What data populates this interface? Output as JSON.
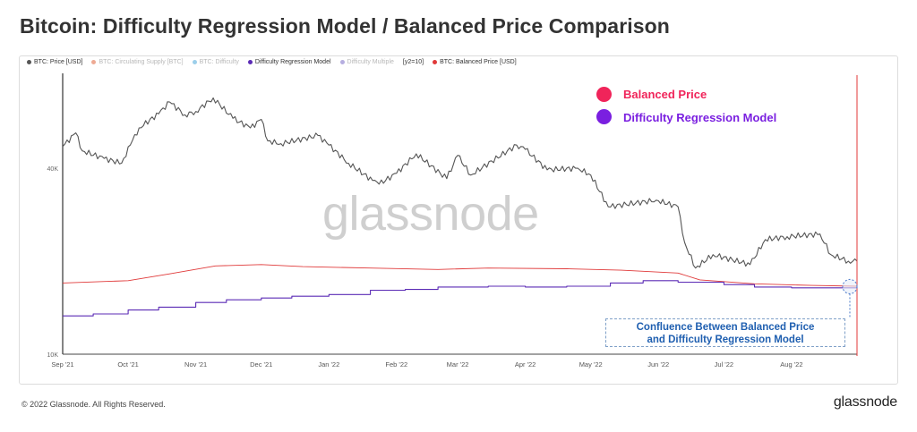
{
  "title": "Bitcoin: Difficulty Regression Model / Balanced Price Comparison",
  "legend": [
    {
      "label": "BTC: Price [USD]",
      "color": "#555555",
      "active": true
    },
    {
      "label": "BTC: Circulating Supply [BTC]",
      "color": "#e0643c",
      "active": false
    },
    {
      "label": "BTC: Difficulty",
      "color": "#4aa8d8",
      "active": false
    },
    {
      "label": "Difficulty Regression Model",
      "color": "#5b2bb5",
      "active": true
    },
    {
      "label": "Difficulty Multiple",
      "color": "#7a6cc7",
      "active": false
    },
    {
      "label": "[y2=10]",
      "color": "",
      "active": true
    },
    {
      "label": "BTC: Balanced Price [USD]",
      "color": "#e03a3a",
      "active": true
    }
  ],
  "annotations": {
    "balanced_price_label": "Balanced Price",
    "balanced_price_color": "#f0245a",
    "difficulty_model_label": "Difficulty Regression Model",
    "difficulty_model_color": "#7a1fe0",
    "confluence_line1": "Confluence Between Balanced Price",
    "confluence_line2": "and Difficulty Regression Model"
  },
  "watermark": "glassnode",
  "footer": {
    "copyright": "© 2022 Glassnode. All Rights Reserved.",
    "logo": "glassnode"
  },
  "chart_data": {
    "type": "line",
    "y_scale": "log",
    "ylim": [
      10000,
      80000
    ],
    "y_ticks": [
      {
        "value": 10000,
        "label": "10K"
      },
      {
        "value": 40000,
        "label": "40K"
      }
    ],
    "x_range": [
      "2021-09-01",
      "2022-08-31"
    ],
    "x_ticks": [
      {
        "date": "2021-09-01",
        "label": "Sep '21"
      },
      {
        "date": "2021-10-01",
        "label": "Oct '21"
      },
      {
        "date": "2021-11-01",
        "label": "Nov '21"
      },
      {
        "date": "2021-12-01",
        "label": "Dec '21"
      },
      {
        "date": "2022-01-01",
        "label": "Jan '22"
      },
      {
        "date": "2022-02-01",
        "label": "Feb '22"
      },
      {
        "date": "2022-03-01",
        "label": "Mar '22"
      },
      {
        "date": "2022-04-01",
        "label": "Apr '22"
      },
      {
        "date": "2022-05-01",
        "label": "May '22"
      },
      {
        "date": "2022-06-01",
        "label": "Jun '22"
      },
      {
        "date": "2022-07-01",
        "label": "Jul '22"
      },
      {
        "date": "2022-08-01",
        "label": "Aug '22"
      }
    ],
    "series": [
      {
        "name": "BTC: Price [USD]",
        "color": "#555555",
        "points": [
          [
            "2021-09-01",
            47000
          ],
          [
            "2021-09-07",
            52000
          ],
          [
            "2021-09-10",
            45500
          ],
          [
            "2021-09-20",
            43000
          ],
          [
            "2021-09-28",
            41500
          ],
          [
            "2021-10-02",
            47500
          ],
          [
            "2021-10-06",
            54000
          ],
          [
            "2021-10-15",
            60000
          ],
          [
            "2021-10-20",
            65500
          ],
          [
            "2021-10-27",
            59500
          ],
          [
            "2021-11-01",
            61000
          ],
          [
            "2021-11-09",
            67500
          ],
          [
            "2021-11-18",
            58000
          ],
          [
            "2021-11-26",
            54000
          ],
          [
            "2021-12-01",
            57500
          ],
          [
            "2021-12-04",
            49000
          ],
          [
            "2021-12-10",
            48000
          ],
          [
            "2021-12-27",
            51000
          ],
          [
            "2022-01-01",
            47500
          ],
          [
            "2022-01-10",
            41500
          ],
          [
            "2022-01-21",
            36500
          ],
          [
            "2022-01-24",
            35500
          ],
          [
            "2022-02-01",
            38500
          ],
          [
            "2022-02-10",
            44500
          ],
          [
            "2022-02-24",
            37000
          ],
          [
            "2022-03-01",
            44000
          ],
          [
            "2022-03-07",
            38000
          ],
          [
            "2022-03-28",
            47500
          ],
          [
            "2022-04-01",
            46000
          ],
          [
            "2022-04-11",
            39500
          ],
          [
            "2022-04-25",
            40000
          ],
          [
            "2022-05-01",
            38000
          ],
          [
            "2022-05-09",
            30000
          ],
          [
            "2022-05-31",
            31500
          ],
          [
            "2022-06-10",
            30000
          ],
          [
            "2022-06-13",
            23000
          ],
          [
            "2022-06-18",
            19000
          ],
          [
            "2022-06-26",
            21000
          ],
          [
            "2022-07-13",
            19500
          ],
          [
            "2022-07-20",
            23500
          ],
          [
            "2022-07-30",
            24000
          ],
          [
            "2022-08-14",
            24500
          ],
          [
            "2022-08-19",
            21000
          ],
          [
            "2022-08-27",
            20000
          ],
          [
            "2022-08-31",
            20000
          ]
        ]
      },
      {
        "name": "BTC: Balanced Price [USD]",
        "color": "#e03a3a",
        "points": [
          [
            "2021-09-01",
            17000
          ],
          [
            "2021-10-01",
            17300
          ],
          [
            "2021-10-20",
            18200
          ],
          [
            "2021-11-10",
            19300
          ],
          [
            "2021-12-01",
            19500
          ],
          [
            "2021-12-20",
            19200
          ],
          [
            "2022-01-20",
            19000
          ],
          [
            "2022-02-20",
            18800
          ],
          [
            "2022-03-15",
            19000
          ],
          [
            "2022-04-20",
            18900
          ],
          [
            "2022-05-15",
            18700
          ],
          [
            "2022-06-10",
            18300
          ],
          [
            "2022-06-20",
            17400
          ],
          [
            "2022-07-15",
            16900
          ],
          [
            "2022-08-10",
            16700
          ],
          [
            "2022-08-31",
            16600
          ]
        ]
      },
      {
        "name": "Difficulty Regression Model",
        "color": "#5b2bb5",
        "points": [
          [
            "2021-09-01",
            13300
          ],
          [
            "2021-09-15",
            13500
          ],
          [
            "2021-10-01",
            13900
          ],
          [
            "2021-10-15",
            14200
          ],
          [
            "2021-11-01",
            14700
          ],
          [
            "2021-11-15",
            15000
          ],
          [
            "2021-12-01",
            15200
          ],
          [
            "2021-12-15",
            15400
          ],
          [
            "2022-01-01",
            15600
          ],
          [
            "2022-01-20",
            16100
          ],
          [
            "2022-02-05",
            16200
          ],
          [
            "2022-02-20",
            16500
          ],
          [
            "2022-03-15",
            16600
          ],
          [
            "2022-04-01",
            16500
          ],
          [
            "2022-04-20",
            16600
          ],
          [
            "2022-05-10",
            17000
          ],
          [
            "2022-05-25",
            17300
          ],
          [
            "2022-06-10",
            17100
          ],
          [
            "2022-07-01",
            16800
          ],
          [
            "2022-07-15",
            16500
          ],
          [
            "2022-08-01",
            16400
          ],
          [
            "2022-08-31",
            16500
          ]
        ]
      }
    ]
  }
}
